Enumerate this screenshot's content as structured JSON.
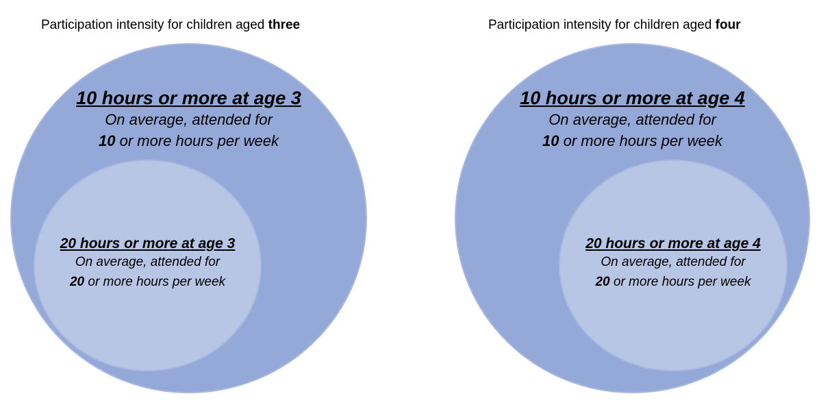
{
  "panels": [
    {
      "title_prefix": "Participation intensity for children aged ",
      "title_bold": "three",
      "outer": {
        "heading": "10 hours or more at age 3",
        "line1": "On average, attended for",
        "line2_num": "10",
        "line2_rest": " or more hours per week"
      },
      "inner": {
        "heading": "20 hours or more at age 3",
        "line1": "On average, attended for",
        "line2_num": "20",
        "line2_rest": " or more hours per week"
      }
    },
    {
      "title_prefix": "Participation intensity for children aged ",
      "title_bold": "four",
      "outer": {
        "heading": "10 hours or more at age 4",
        "line1": "On average, attended for",
        "line2_num": "10",
        "line2_rest": " or more hours per week"
      },
      "inner": {
        "heading": "20 hours or more at age 4",
        "line1": "On average, attended for",
        "line2_num": "20",
        "line2_rest": " or more hours per week"
      }
    }
  ],
  "colors": {
    "outer_fill": "#95a9d9",
    "inner_fill": "#b8c6e5"
  }
}
